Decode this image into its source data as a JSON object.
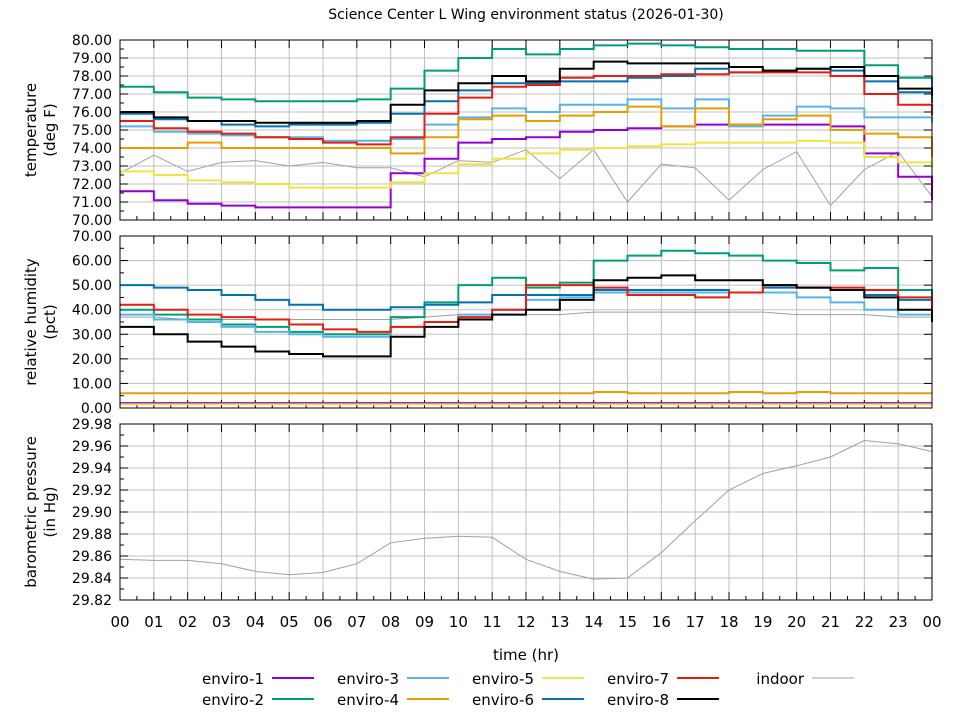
{
  "chart_data": [
    {
      "type": "line",
      "title": "Science Center L Wing environment status (2026-01-30)",
      "xlabel": "time (hr)",
      "x_tick_labels": [
        "00",
        "01",
        "02",
        "03",
        "04",
        "05",
        "06",
        "07",
        "08",
        "09",
        "10",
        "11",
        "12",
        "13",
        "14",
        "15",
        "16",
        "17",
        "18",
        "19",
        "20",
        "21",
        "22",
        "23",
        "00"
      ],
      "x": [
        0,
        1,
        2,
        3,
        4,
        5,
        6,
        7,
        8,
        9,
        10,
        11,
        12,
        13,
        14,
        15,
        16,
        17,
        18,
        19,
        20,
        21,
        22,
        23,
        24
      ],
      "xlim": [
        0,
        24
      ],
      "grid": true,
      "legend_placement": "bottom",
      "colors": {
        "enviro-1": "#9400d3",
        "enviro-2": "#009e73",
        "enviro-3": "#56b4e9",
        "enviro-4": "#e69f00",
        "enviro-5": "#f0e442",
        "enviro-6": "#0072b2",
        "enviro-7": "#e51e10",
        "enviro-8": "#000000",
        "indoor": "#a0a0a0"
      },
      "legend": [
        "enviro-1",
        "enviro-2",
        "enviro-3",
        "enviro-4",
        "enviro-5",
        "enviro-6",
        "enviro-7",
        "enviro-8",
        "indoor"
      ],
      "panels": [
        {
          "name": "temperature",
          "ylabel": [
            "temperature",
            "(deg F)"
          ],
          "ylim": [
            70,
            80
          ],
          "y_tick_labels": [
            "70.00",
            "71.00",
            "72.00",
            "73.00",
            "74.00",
            "75.00",
            "76.00",
            "77.00",
            "78.00",
            "79.00",
            "80.00"
          ],
          "series": [
            {
              "name": "enviro-1",
              "values": [
                71.6,
                71.1,
                70.9,
                70.8,
                70.7,
                70.7,
                70.7,
                70.7,
                72.6,
                73.4,
                74.3,
                74.5,
                74.6,
                74.9,
                75.0,
                75.1,
                75.2,
                75.3,
                75.3,
                75.3,
                75.3,
                75.2,
                73.7,
                72.4,
                71.1
              ]
            },
            {
              "name": "enviro-2",
              "values": [
                77.4,
                77.1,
                76.8,
                76.7,
                76.6,
                76.6,
                76.6,
                76.7,
                77.3,
                78.3,
                79.0,
                79.5,
                79.2,
                79.5,
                79.7,
                79.8,
                79.7,
                79.6,
                79.5,
                79.5,
                79.4,
                79.4,
                78.6,
                77.9,
                77.3
              ]
            },
            {
              "name": "enviro-3",
              "values": [
                75.2,
                74.9,
                74.8,
                74.7,
                74.6,
                74.6,
                74.4,
                74.4,
                74.5,
                75.3,
                75.7,
                76.2,
                76.0,
                76.4,
                76.4,
                76.7,
                76.2,
                76.7,
                75.2,
                75.8,
                76.3,
                76.2,
                75.7,
                75.7,
                75.4
              ]
            },
            {
              "name": "enviro-4",
              "values": [
                74.0,
                74.0,
                74.3,
                74.0,
                74.0,
                74.0,
                74.0,
                74.0,
                73.7,
                74.6,
                75.6,
                75.8,
                75.5,
                75.8,
                76.0,
                76.3,
                75.2,
                76.2,
                75.3,
                75.6,
                75.8,
                75.0,
                74.8,
                74.6,
                73.5
              ]
            },
            {
              "name": "enviro-5",
              "values": [
                72.7,
                72.5,
                72.2,
                72.1,
                72.0,
                71.8,
                71.8,
                71.8,
                72.1,
                72.6,
                73.1,
                73.4,
                73.7,
                73.9,
                74.0,
                74.1,
                74.2,
                74.3,
                74.3,
                74.3,
                74.4,
                74.3,
                73.5,
                73.2,
                72.9
              ]
            },
            {
              "name": "enviro-6",
              "values": [
                75.9,
                75.6,
                75.5,
                75.3,
                75.2,
                75.3,
                75.3,
                75.4,
                75.9,
                76.6,
                77.2,
                77.6,
                77.6,
                77.7,
                77.7,
                77.9,
                78.0,
                78.4,
                78.2,
                78.3,
                78.4,
                78.3,
                77.7,
                77.1,
                76.5
              ]
            },
            {
              "name": "enviro-7",
              "values": [
                75.5,
                75.1,
                74.9,
                74.8,
                74.6,
                74.5,
                74.3,
                74.2,
                74.6,
                75.9,
                76.8,
                77.4,
                77.5,
                77.9,
                78.0,
                78.0,
                78.1,
                78.1,
                78.2,
                78.2,
                78.2,
                78.0,
                77.0,
                76.4,
                75.8
              ]
            },
            {
              "name": "enviro-8",
              "values": [
                76.0,
                75.7,
                75.5,
                75.5,
                75.4,
                75.4,
                75.4,
                75.5,
                76.4,
                77.2,
                77.6,
                78.0,
                77.7,
                78.4,
                78.8,
                78.7,
                78.7,
                78.7,
                78.5,
                78.3,
                78.4,
                78.5,
                78.0,
                77.3,
                76.9
              ]
            },
            {
              "name": "indoor",
              "values": [
                72.6,
                73.6,
                72.7,
                73.2,
                73.3,
                73.0,
                73.2,
                72.9,
                72.9,
                72.4,
                73.3,
                73.2,
                73.9,
                72.3,
                73.9,
                71.0,
                73.1,
                72.9,
                71.1,
                72.8,
                73.8,
                70.8,
                72.8,
                73.8,
                71.3
              ]
            }
          ]
        },
        {
          "name": "humidity",
          "ylabel": [
            "relative humidity",
            "(pct)"
          ],
          "ylim": [
            0,
            70
          ],
          "y_tick_labels": [
            "0.00",
            "10.00",
            "20.00",
            "30.00",
            "40.00",
            "50.00",
            "60.00",
            "70.00"
          ],
          "series": [
            {
              "name": "enviro-1",
              "values": [
                2,
                2,
                2,
                2,
                2,
                2,
                2,
                2,
                2,
                2,
                2,
                2,
                2,
                2,
                2,
                2,
                2,
                2,
                2,
                2,
                2,
                2,
                2,
                2,
                2
              ]
            },
            {
              "name": "enviro-2",
              "values": [
                40,
                38,
                36,
                34,
                33,
                31,
                30,
                30,
                37,
                43,
                50,
                53,
                49,
                51,
                60,
                62,
                64,
                63,
                62,
                60,
                59,
                56,
                57,
                48,
                41
              ]
            },
            {
              "name": "enviro-3",
              "values": [
                38,
                36,
                35,
                33,
                31,
                30,
                29,
                29,
                33,
                35,
                38,
                40,
                44,
                45,
                47,
                47,
                47,
                47,
                47,
                47,
                45,
                43,
                40,
                38,
                35
              ]
            },
            {
              "name": "enviro-4",
              "values": [
                6,
                6,
                6,
                6,
                6,
                6,
                6,
                6,
                6,
                6,
                6,
                6,
                6,
                6,
                6.5,
                6,
                6,
                6,
                6.5,
                6,
                6.5,
                6,
                6,
                6,
                6
              ]
            },
            {
              "name": "enviro-5",
              "values": [
                1.5,
                1.5,
                1.5,
                1.5,
                1.5,
                1.5,
                1.5,
                1.5,
                1.5,
                1.5,
                1.5,
                1.5,
                1.5,
                1.5,
                1.5,
                1.5,
                1.5,
                1.5,
                1.5,
                1.5,
                1.5,
                1.5,
                1.5,
                1.5,
                1.5
              ]
            },
            {
              "name": "enviro-6",
              "values": [
                50,
                49,
                48,
                46,
                44,
                42,
                40,
                40,
                41,
                42,
                43,
                46,
                46,
                46,
                48,
                48,
                48,
                48,
                47,
                49,
                49,
                48,
                46,
                44,
                42
              ]
            },
            {
              "name": "enviro-7",
              "values": [
                42,
                40,
                38,
                37,
                36,
                34,
                32,
                31,
                33,
                35,
                37,
                40,
                50,
                50,
                49,
                46,
                46,
                45,
                47,
                50,
                49,
                49,
                48,
                45,
                40
              ]
            },
            {
              "name": "enviro-8",
              "values": [
                33,
                30,
                27,
                25,
                23,
                22,
                21,
                21,
                29,
                33,
                36,
                38,
                40,
                44,
                52,
                53,
                54,
                52,
                52,
                50,
                49,
                48,
                45,
                40,
                35
              ]
            },
            {
              "name": "indoor",
              "values": [
                37,
                37,
                36,
                36,
                36,
                36,
                36,
                36,
                36,
                37,
                38,
                38,
                38,
                38,
                39,
                39,
                39,
                39,
                39,
                39,
                38,
                38,
                38,
                37,
                37
              ]
            }
          ]
        },
        {
          "name": "pressure",
          "ylabel": [
            "barometric pressure",
            "(in Hg)"
          ],
          "ylim": [
            29.82,
            29.98
          ],
          "y_tick_labels": [
            "29.82",
            "29.84",
            "29.86",
            "29.88",
            "29.90",
            "29.92",
            "29.94",
            "29.96",
            "29.98"
          ],
          "series": [
            {
              "name": "indoor",
              "values": [
                29.857,
                29.856,
                29.856,
                29.853,
                29.846,
                29.843,
                29.845,
                29.853,
                29.872,
                29.876,
                29.878,
                29.877,
                29.857,
                29.846,
                29.839,
                29.84,
                29.863,
                29.892,
                29.92,
                29.935,
                29.942,
                29.95,
                29.965,
                29.962,
                29.955
              ]
            }
          ]
        }
      ]
    }
  ]
}
